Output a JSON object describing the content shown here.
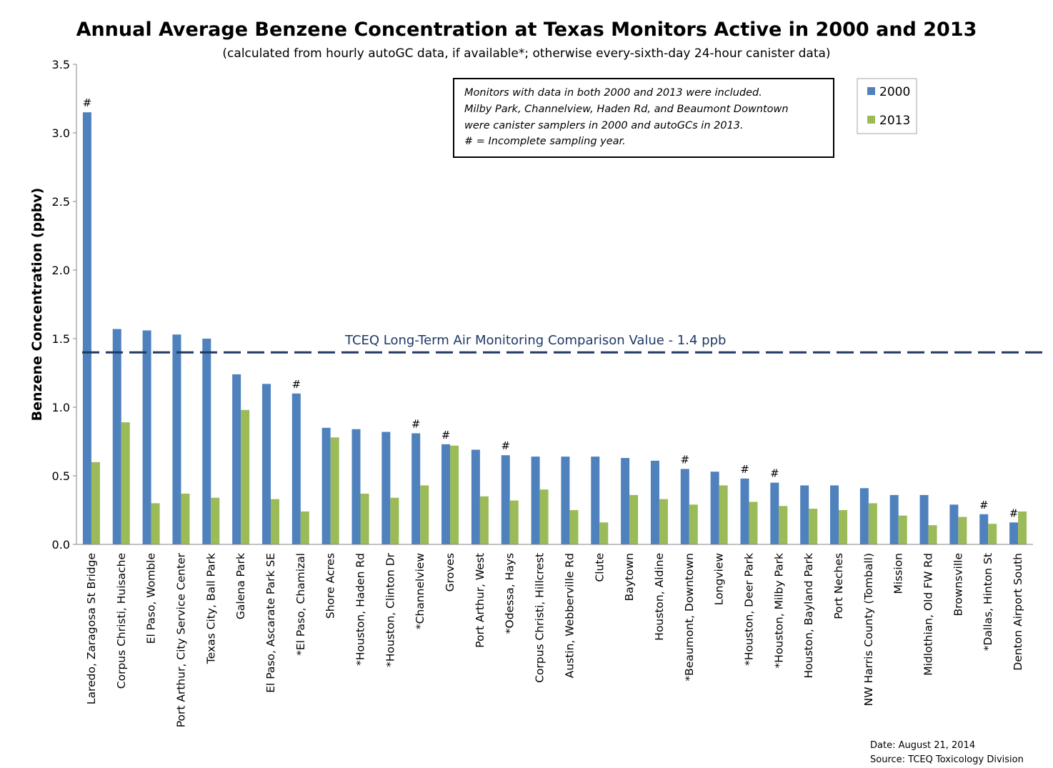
{
  "chart_data": {
    "type": "bar",
    "title": "Annual Average Benzene Concentration at Texas Monitors Active in 2000 and 2013",
    "subtitle": "(calculated from hourly autoGC data, if available*;  otherwise every-sixth-day 24-hour canister data)",
    "xlabel": "",
    "ylabel": "Benzene Concentration (ppbv)",
    "ylim": [
      0,
      3.5
    ],
    "yticks": [
      0.0,
      0.5,
      1.0,
      1.5,
      2.0,
      2.5,
      3.0,
      3.5
    ],
    "ytick_labels": [
      "0.0",
      "0.5",
      "1.0",
      "1.5",
      "2.0",
      "2.5",
      "3.0",
      "3.5"
    ],
    "grid": false,
    "legend_position": "top-right",
    "categories": [
      "Laredo, Zaragosa St Bridge",
      "Corpus Christi, Huisache",
      "El Paso, Womble",
      "Port Arthur, City Service Center",
      "Texas City, Ball Park",
      "Galena Park",
      "El Paso, Ascarate Park SE",
      "*El Paso, Chamizal",
      "Shore Acres",
      "*Houston, Haden Rd",
      "*Houston, Clinton Dr",
      "*Channelview",
      "Groves",
      "Port Arthur, West",
      "*Odessa, Hays",
      "Corpus Christi, Hillcrest",
      "Austin, Webberville Rd",
      "Clute",
      "Baytown",
      "Houston, Aldine",
      "*Beaumont, Downtown",
      "Longview",
      "*Houston, Deer Park",
      "*Houston, Milby Park",
      "Houston, Bayland Park",
      "Port Neches",
      "NW Harris County (Tomball)",
      "Mission",
      "Midlothian, Old FW Rd",
      "Brownsville",
      "*Dallas, Hinton St",
      "Denton Airport South"
    ],
    "series": [
      {
        "name": "2000",
        "color": "#4f81bd",
        "values": [
          3.15,
          1.57,
          1.56,
          1.53,
          1.5,
          1.24,
          1.17,
          1.1,
          0.85,
          0.84,
          0.82,
          0.81,
          0.73,
          0.69,
          0.65,
          0.64,
          0.64,
          0.64,
          0.63,
          0.61,
          0.55,
          0.53,
          0.48,
          0.45,
          0.43,
          0.43,
          0.41,
          0.36,
          0.36,
          0.29,
          0.22,
          0.16
        ]
      },
      {
        "name": "2013",
        "color": "#9bbb59",
        "values": [
          0.6,
          0.89,
          0.3,
          0.37,
          0.34,
          0.98,
          0.33,
          0.24,
          0.78,
          0.37,
          0.34,
          0.43,
          0.72,
          0.35,
          0.32,
          0.4,
          0.25,
          0.16,
          0.36,
          0.33,
          0.29,
          0.43,
          0.31,
          0.28,
          0.26,
          0.25,
          0.3,
          0.21,
          0.14,
          0.2,
          0.15,
          0.24
        ]
      }
    ],
    "incomplete_marker": "#",
    "incomplete_categories": [
      0,
      7,
      11,
      12,
      14,
      20,
      22,
      23,
      30,
      31
    ],
    "reference_line": {
      "value": 1.4,
      "label": "TCEQ Long-Term Air Monitoring Comparison Value - 1.4 ppb",
      "color": "#1f3864",
      "style": "dashed"
    },
    "annotation_box": [
      "Monitors with data in both 2000 and 2013 were included.",
      "Milby Park, Channelview, Haden Rd, and Beaumont Downtown",
      "were canister samplers in 2000 and autoGCs in 2013.",
      "# = Incomplete sampling year."
    ],
    "footer": [
      "Date: August 21, 2014",
      "Source: TCEQ Toxicology Division"
    ]
  }
}
